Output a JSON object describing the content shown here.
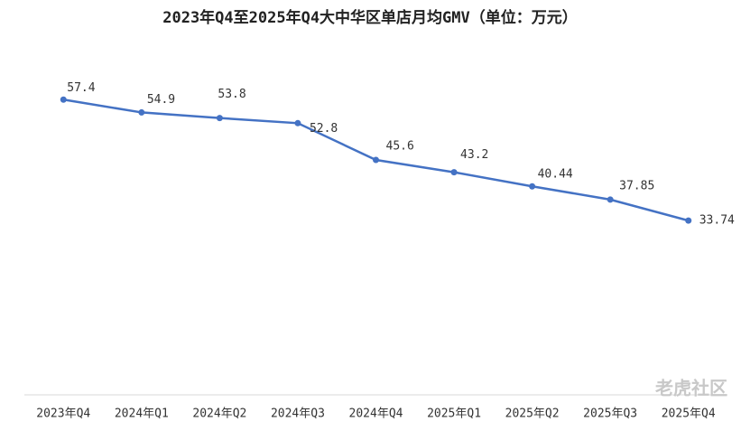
{
  "chart_data": {
    "type": "line",
    "title": "2023年Q4至2025年Q4大中华区单店月均GMV（单位：万元）",
    "categories": [
      "2023年Q4",
      "2024年Q1",
      "2024年Q2",
      "2024年Q3",
      "2024年Q4",
      "2025年Q1",
      "2025年Q2",
      "2025年Q3",
      "2025年Q4"
    ],
    "series": [
      {
        "name": "单店月均GMV",
        "color": "#4472c4",
        "values": [
          57.4,
          54.9,
          53.8,
          52.8,
          45.6,
          43.2,
          40.44,
          37.85,
          33.74
        ]
      }
    ],
    "ylim": [
      0,
      70
    ],
    "legend": false
  },
  "watermark": "老虎社区"
}
